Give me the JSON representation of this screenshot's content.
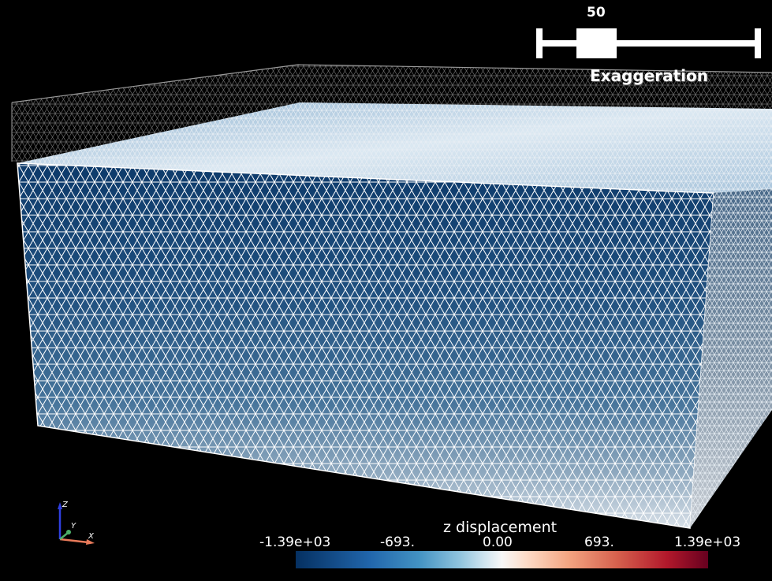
{
  "slider": {
    "value": "50",
    "label": "Exaggeration"
  },
  "scalar_bar": {
    "title": "z displacement",
    "ticks": [
      "-1.39e+03",
      "-693.",
      "0.00",
      "693.",
      "1.39e+03"
    ],
    "colormap": "cool-to-warm (blue-white-red)"
  },
  "axes": {
    "z": "Z",
    "y": "Y",
    "x": "X"
  },
  "colors": {
    "background": "#000000",
    "mesh_edges": "#ffffff",
    "low": "#053061",
    "mid": "#f7f7f7",
    "high": "#67001f"
  }
}
